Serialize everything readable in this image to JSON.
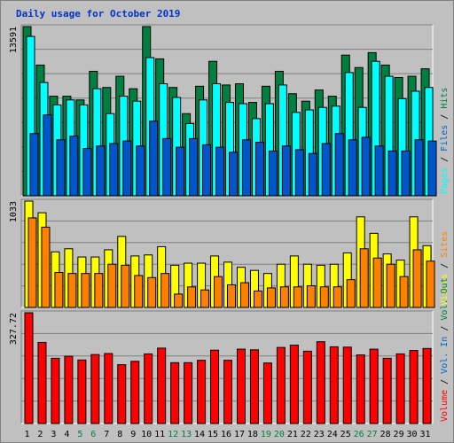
{
  "title": "Daily usage for October 2019",
  "colors": {
    "hits": "#008040",
    "files": "#00ffff",
    "pages": "#00ffff",
    "visits": "#ffff00",
    "sites": "#ff8000",
    "kbytes": "#ff0000",
    "weekday_label": "#000000",
    "weekend_label": "#008040",
    "separator": "#000000"
  },
  "chart_data": [
    {
      "type": "bar",
      "panel": "top",
      "title": "Daily usage for October 2019",
      "categories": [
        "1",
        "2",
        "3",
        "4",
        "5",
        "6",
        "7",
        "8",
        "9",
        "10",
        "11",
        "12",
        "13",
        "14",
        "15",
        "16",
        "17",
        "18",
        "19",
        "20",
        "21",
        "22",
        "23",
        "24",
        "25",
        "26",
        "27",
        "28",
        "29",
        "30",
        "31"
      ],
      "weekend_categories": [
        "5",
        "6",
        "12",
        "13",
        "19",
        "20",
        "26",
        "27"
      ],
      "ymax_label": "13591",
      "ylim": [
        0,
        13591
      ],
      "series": [
        {
          "name": "Hits",
          "values": [
            13591,
            10500,
            8000,
            8000,
            7700,
            10000,
            8700,
            9600,
            8600,
            13591,
            11000,
            8700,
            6600,
            8800,
            10800,
            8900,
            9000,
            7500,
            8800,
            10000,
            8200,
            7600,
            8500,
            8000,
            11300,
            10300,
            11500,
            10500,
            9500,
            9600,
            10200
          ]
        },
        {
          "name": "Files",
          "values": [
            12800,
            9100,
            7300,
            7700,
            7300,
            8600,
            6600,
            8000,
            7600,
            11100,
            9000,
            7900,
            5800,
            7700,
            9000,
            7500,
            7400,
            6200,
            7400,
            8900,
            6700,
            6900,
            7100,
            7200,
            9900,
            7100,
            10800,
            9600,
            7800,
            8400,
            8700
          ]
        },
        {
          "name": "Pages",
          "values": [
            5000,
            6500,
            4500,
            4800,
            3800,
            4000,
            4200,
            4400,
            4000,
            6000,
            4600,
            3900,
            4600,
            4100,
            3900,
            3500,
            4500,
            4300,
            3600,
            4000,
            3700,
            3400,
            4200,
            5000,
            4500,
            4700,
            4000,
            3600,
            3600,
            4500,
            4400
          ]
        }
      ],
      "legend": [
        "Hits",
        "Files",
        "Pages"
      ]
    },
    {
      "type": "bar",
      "panel": "middle",
      "ymax_label": "1033",
      "ylim": [
        0,
        1033
      ],
      "series": [
        {
          "name": "Visits",
          "values": [
            1033,
            920,
            540,
            570,
            490,
            490,
            560,
            690,
            500,
            510,
            590,
            410,
            430,
            430,
            500,
            440,
            390,
            360,
            330,
            420,
            500,
            420,
            410,
            420,
            530,
            880,
            720,
            520,
            460,
            880,
            600
          ]
        },
        {
          "name": "Sites",
          "values": [
            870,
            780,
            340,
            330,
            330,
            330,
            420,
            410,
            310,
            290,
            330,
            130,
            200,
            170,
            300,
            220,
            240,
            160,
            190,
            200,
            200,
            210,
            200,
            200,
            270,
            570,
            480,
            420,
            300,
            560,
            450
          ]
        }
      ],
      "legend": [
        "Visits",
        "Sites"
      ]
    },
    {
      "type": "bar",
      "panel": "bottom",
      "ymax_label": "327.72",
      "ylim": [
        0,
        327.72
      ],
      "series": [
        {
          "name": "KBytes",
          "values": [
            327.72,
            240,
            193,
            199,
            188,
            204,
            207,
            174,
            184,
            206,
            223,
            180,
            180,
            187,
            217,
            187,
            220,
            218,
            179,
            225,
            232,
            214,
            242,
            227,
            226,
            203,
            220,
            193,
            206,
            216,
            222
          ]
        }
      ],
      "legend": [
        "Volume",
        "Vol. In",
        "Vol. Out",
        "Sites",
        "Visits",
        "Pages",
        "Files",
        "Hits"
      ],
      "legend_colors": [
        "#ff0000",
        "#0066cc",
        "#008040",
        "#ff8000",
        "#ffff00",
        "#00ffff",
        "#0066cc",
        "#008040"
      ]
    }
  ],
  "legend_top": {
    "separator": "/",
    "items": [
      {
        "label": "Pages",
        "color": "#00ffff"
      },
      {
        "label": "Files",
        "color": "#0066cc"
      },
      {
        "label": "Hits",
        "color": "#008040"
      }
    ]
  },
  "legend_middle": {
    "separator": "/",
    "items": [
      {
        "label": "Visits",
        "color": "#ffff00"
      },
      {
        "label": "Sites",
        "color": "#ff8000"
      }
    ]
  },
  "legend_bottom": {
    "separator": "/",
    "items": [
      {
        "label": "Volume",
        "color": "#ff0000"
      },
      {
        "label": "Vol. In",
        "color": "#0066cc"
      },
      {
        "label": "Vol. Out",
        "color": "#008040"
      }
    ]
  },
  "legend_top_text": "Pages / Files / Hits",
  "legend_middle_text": "Visits / Sites",
  "legend_bottom_text": "Volume / Vol. In / Vol. Out"
}
